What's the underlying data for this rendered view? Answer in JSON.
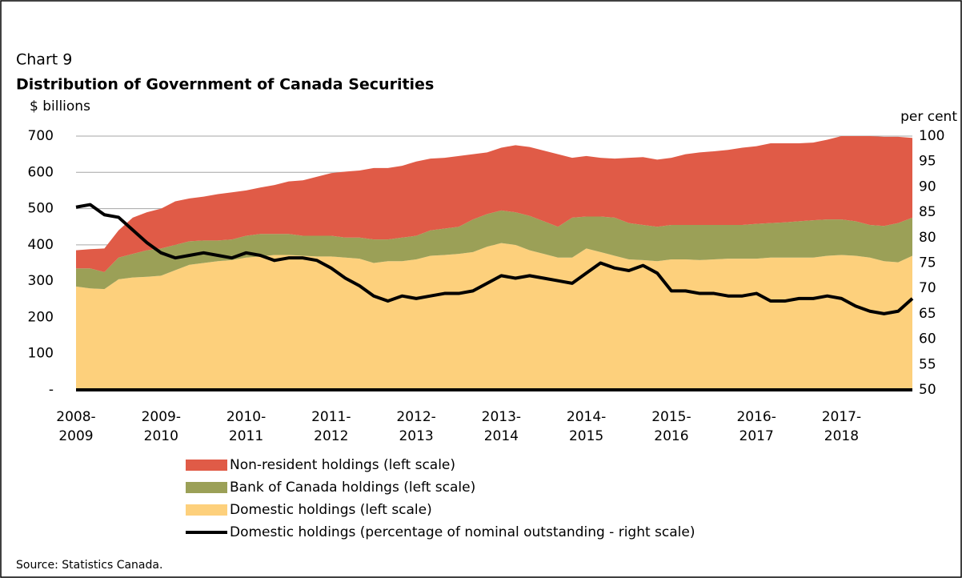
{
  "chart_data": {
    "type": "stacked-area-line",
    "label": "Chart 9",
    "title": "Distribution of Government of Canada Securities",
    "y_label": "$ billions",
    "y2_label": "per cent",
    "source": "Source: Statistics Canada.",
    "categories": [
      "2008-2009",
      null,
      null,
      null,
      null,
      null,
      "2009-2010",
      null,
      null,
      null,
      null,
      null,
      "2010-2011",
      null,
      null,
      null,
      null,
      null,
      "2011-2012",
      null,
      null,
      null,
      null,
      null,
      "2012-2013",
      null,
      null,
      null,
      null,
      null,
      "2013-2014",
      null,
      null,
      null,
      null,
      null,
      "2014-2015",
      null,
      null,
      null,
      null,
      null,
      "2015-2016",
      null,
      null,
      null,
      null,
      null,
      "2016-2017",
      null,
      null,
      null,
      null,
      null,
      "2017-2018",
      null,
      null,
      null,
      null,
      null
    ],
    "series": [
      {
        "name": "Domestic holdings (left scale)",
        "color": "#fdd07c",
        "values": [
          285,
          280,
          278,
          305,
          310,
          312,
          315,
          330,
          345,
          350,
          355,
          358,
          365,
          368,
          372,
          372,
          370,
          368,
          368,
          365,
          362,
          350,
          355,
          355,
          360,
          370,
          372,
          375,
          380,
          395,
          405,
          400,
          385,
          375,
          365,
          365,
          390,
          380,
          370,
          360,
          358,
          355,
          360,
          360,
          358,
          360,
          362,
          362,
          362,
          365,
          365,
          365,
          365,
          370,
          372,
          370,
          365,
          355,
          352,
          370
        ]
      },
      {
        "name": "Bank of Canada holdings (left scale)",
        "color": "#9ba057",
        "values": [
          50,
          55,
          47,
          60,
          65,
          73,
          75,
          70,
          65,
          62,
          57,
          57,
          60,
          62,
          58,
          58,
          55,
          57,
          57,
          55,
          58,
          65,
          60,
          65,
          65,
          70,
          73,
          75,
          90,
          90,
          90,
          90,
          95,
          90,
          85,
          110,
          88,
          98,
          105,
          100,
          97,
          95,
          95,
          95,
          97,
          95,
          93,
          93,
          96,
          95,
          97,
          100,
          103,
          100,
          98,
          95,
          90,
          97,
          108,
          105
        ]
      },
      {
        "name": "Non-resident holdings (left scale)",
        "color": "#e05b47",
        "values": [
          50,
          53,
          65,
          75,
          100,
          105,
          110,
          120,
          118,
          121,
          128,
          130,
          125,
          128,
          135,
          145,
          153,
          163,
          173,
          182,
          185,
          197,
          197,
          198,
          205,
          198,
          195,
          195,
          180,
          170,
          173,
          185,
          190,
          195,
          200,
          165,
          167,
          162,
          163,
          180,
          187,
          185,
          185,
          195,
          200,
          203,
          207,
          213,
          214,
          220,
          218,
          215,
          214,
          220,
          230,
          235,
          245,
          246,
          238,
          220
        ]
      },
      {
        "name": "Domestic holdings (percentage of nominal outstanding - right scale)",
        "color": "#000000",
        "axis": "y2",
        "values": [
          86,
          86.5,
          84.5,
          84,
          81.5,
          79,
          77,
          76,
          76.5,
          77,
          76.5,
          76,
          77,
          76.5,
          75.5,
          76,
          76,
          75.5,
          74,
          72,
          70.5,
          68.5,
          67.5,
          68.5,
          68,
          68.5,
          69,
          69,
          69.5,
          71,
          72.5,
          72,
          72.5,
          72,
          71.5,
          71,
          73,
          75,
          74,
          73.5,
          74.5,
          73,
          69.5,
          69.5,
          69,
          69,
          68.5,
          68.5,
          69,
          67.5,
          67.5,
          68,
          68,
          68.5,
          68,
          66.5,
          65.5,
          65,
          65.5,
          68
        ]
      }
    ],
    "ylim": [
      0,
      700
    ],
    "yticks": [
      {
        "value": 0,
        "label": "-"
      },
      100,
      200,
      300,
      400,
      500,
      600,
      700
    ],
    "y2lim": [
      50,
      100
    ],
    "y2ticks": [
      50,
      55,
      60,
      65,
      70,
      75,
      80,
      85,
      90,
      95,
      100
    ],
    "grid": true
  }
}
